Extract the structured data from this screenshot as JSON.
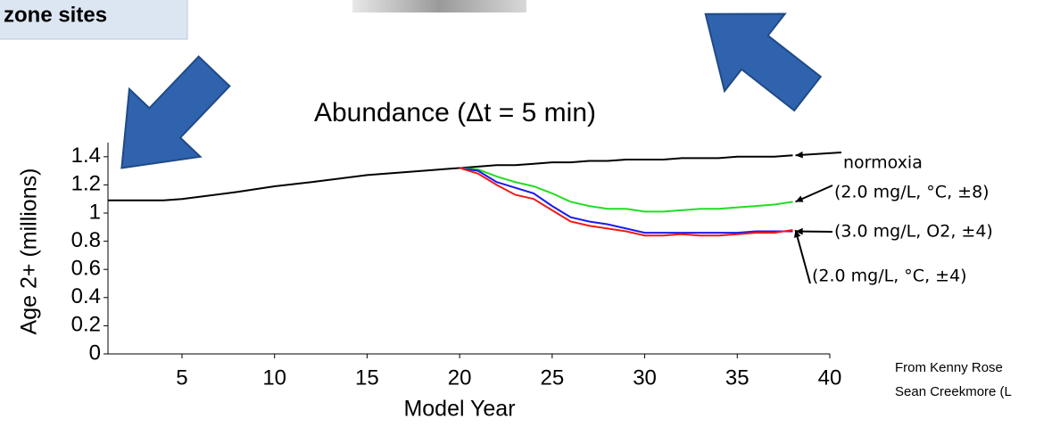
{
  "header": {
    "title": "zone sites"
  },
  "credit": [
    "From Kenny Rose",
    "Sean Creekmore (L"
  ],
  "chart_data": {
    "type": "line",
    "title": "Abundance (Δt = 5 min)",
    "x_label": "Model Year",
    "y_label": "Age 2+ (millions)",
    "x": [
      1,
      4,
      5,
      8,
      10,
      12,
      15,
      18,
      20,
      21,
      22,
      23,
      24,
      25,
      26,
      27,
      28,
      29,
      30,
      31,
      32,
      33,
      34,
      35,
      36,
      37,
      38
    ],
    "series": [
      {
        "name": "normoxia",
        "color": "#000000",
        "values": [
          1.09,
          1.09,
          1.1,
          1.15,
          1.19,
          1.22,
          1.27,
          1.3,
          1.32,
          1.33,
          1.34,
          1.34,
          1.35,
          1.36,
          1.36,
          1.37,
          1.37,
          1.38,
          1.38,
          1.38,
          1.39,
          1.39,
          1.39,
          1.4,
          1.4,
          1.4,
          1.41
        ]
      },
      {
        "name": "(2.0 mg/L, °C, ±8)",
        "color": "#22dd22",
        "values": [
          null,
          null,
          null,
          null,
          null,
          null,
          null,
          null,
          1.32,
          1.31,
          1.26,
          1.22,
          1.19,
          1.14,
          1.08,
          1.05,
          1.03,
          1.03,
          1.01,
          1.01,
          1.02,
          1.03,
          1.03,
          1.04,
          1.05,
          1.06,
          1.08
        ]
      },
      {
        "name": "(3.0 mg/L, O2, ±4)",
        "color": "#1a1aee",
        "values": [
          null,
          null,
          null,
          null,
          null,
          null,
          null,
          null,
          1.32,
          1.3,
          1.22,
          1.18,
          1.14,
          1.05,
          0.97,
          0.94,
          0.92,
          0.89,
          0.86,
          0.86,
          0.86,
          0.86,
          0.86,
          0.86,
          0.87,
          0.87,
          0.87
        ]
      },
      {
        "name": "(2.0 mg/L, °C, ±4)",
        "color": "#ee1a1a",
        "values": [
          null,
          null,
          null,
          null,
          null,
          null,
          null,
          null,
          1.32,
          1.28,
          1.2,
          1.13,
          1.1,
          1.02,
          0.94,
          0.91,
          0.89,
          0.87,
          0.84,
          0.84,
          0.85,
          0.84,
          0.84,
          0.85,
          0.86,
          0.86,
          0.88
        ]
      }
    ],
    "xlim": [
      1,
      40
    ],
    "ylim": [
      0,
      1.5
    ],
    "xticks": [
      5,
      10,
      15,
      20,
      25,
      30,
      35,
      40
    ],
    "yticks": [
      0,
      0.2,
      0.4,
      0.6,
      0.8,
      1,
      1.2,
      1.4
    ]
  }
}
